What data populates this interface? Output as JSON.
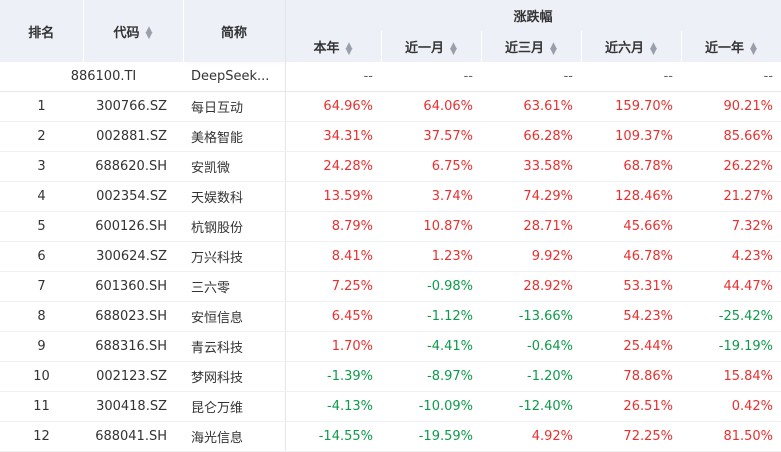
{
  "header": {
    "rank": "排名",
    "code": "代码",
    "name": "简称",
    "group": "涨跌幅",
    "periods": [
      "本年",
      "近一月",
      "近三月",
      "近六月",
      "近一年"
    ]
  },
  "pinned": {
    "code": "886100.TI",
    "name": "DeepSeek...",
    "values": [
      "--",
      "--",
      "--",
      "--",
      "--"
    ]
  },
  "rows": [
    {
      "rank": "1",
      "code": "300766.SZ",
      "name": "每日互动",
      "values": [
        "64.96%",
        "64.06%",
        "63.61%",
        "159.70%",
        "90.21%"
      ]
    },
    {
      "rank": "2",
      "code": "002881.SZ",
      "name": "美格智能",
      "values": [
        "34.31%",
        "37.57%",
        "66.28%",
        "109.37%",
        "85.66%"
      ]
    },
    {
      "rank": "3",
      "code": "688620.SH",
      "name": "安凯微",
      "values": [
        "24.28%",
        "6.75%",
        "33.58%",
        "68.78%",
        "26.22%"
      ]
    },
    {
      "rank": "4",
      "code": "002354.SZ",
      "name": "天娱数科",
      "values": [
        "13.59%",
        "3.74%",
        "74.29%",
        "128.46%",
        "21.27%"
      ]
    },
    {
      "rank": "5",
      "code": "600126.SH",
      "name": "杭钢股份",
      "values": [
        "8.79%",
        "10.87%",
        "28.71%",
        "45.66%",
        "7.32%"
      ]
    },
    {
      "rank": "6",
      "code": "300624.SZ",
      "name": "万兴科技",
      "values": [
        "8.41%",
        "1.23%",
        "9.92%",
        "46.78%",
        "4.23%"
      ]
    },
    {
      "rank": "7",
      "code": "601360.SH",
      "name": "三六零",
      "values": [
        "7.25%",
        "-0.98%",
        "28.92%",
        "53.31%",
        "44.47%"
      ]
    },
    {
      "rank": "8",
      "code": "688023.SH",
      "name": "安恒信息",
      "values": [
        "6.45%",
        "-1.12%",
        "-13.66%",
        "54.23%",
        "-25.42%"
      ]
    },
    {
      "rank": "9",
      "code": "688316.SH",
      "name": "青云科技",
      "values": [
        "1.70%",
        "-4.41%",
        "-0.64%",
        "25.44%",
        "-19.19%"
      ]
    },
    {
      "rank": "10",
      "code": "002123.SZ",
      "name": "梦网科技",
      "values": [
        "-1.39%",
        "-8.97%",
        "-1.20%",
        "78.86%",
        "15.84%"
      ]
    },
    {
      "rank": "11",
      "code": "300418.SZ",
      "name": "昆仑万维",
      "values": [
        "-4.13%",
        "-10.09%",
        "-12.40%",
        "26.51%",
        "0.42%"
      ]
    },
    {
      "rank": "12",
      "code": "688041.SH",
      "name": "海光信息",
      "values": [
        "-14.55%",
        "-19.59%",
        "4.92%",
        "72.25%",
        "81.50%"
      ]
    }
  ],
  "colors": {
    "up": "#e93030",
    "down": "#0f9a4b",
    "header_bg": "#edf0f7"
  },
  "icons": {
    "sort": "sort-arrows-icon"
  }
}
